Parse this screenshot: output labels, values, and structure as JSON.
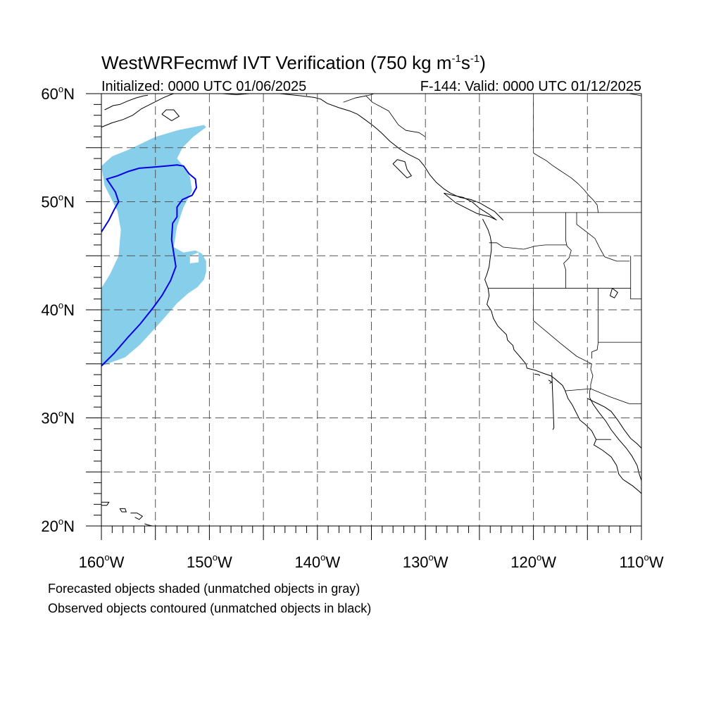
{
  "title": {
    "prefix": "WestWRFecmwf IVT Verification (750 kg m",
    "sup1": "-1",
    "mid": "s",
    "sup2": "-1",
    "suffix": ")"
  },
  "subtitle_left": "Initialized: 0000 UTC 01/06/2025",
  "subtitle_right": "F-144: Valid: 0000 UTC 01/12/2025",
  "map": {
    "lon_range": [
      -160,
      -110
    ],
    "lat_range": [
      20,
      60
    ],
    "grid_lon_step": 5,
    "grid_lat_step": 5,
    "minor_tick_step": 1,
    "lon_labels": [
      {
        "value": -160,
        "text": "160",
        "hemi": "W"
      },
      {
        "value": -150,
        "text": "150",
        "hemi": "W"
      },
      {
        "value": -140,
        "text": "140",
        "hemi": "W"
      },
      {
        "value": -130,
        "text": "130",
        "hemi": "W"
      },
      {
        "value": -120,
        "text": "120",
        "hemi": "W"
      },
      {
        "value": -110,
        "text": "110",
        "hemi": "W"
      }
    ],
    "lat_labels": [
      {
        "value": 60,
        "text": "60",
        "hemi": "N"
      },
      {
        "value": 50,
        "text": "50",
        "hemi": "N"
      },
      {
        "value": 40,
        "text": "40",
        "hemi": "N"
      },
      {
        "value": 30,
        "text": "30",
        "hemi": "N"
      },
      {
        "value": 20,
        "text": "20",
        "hemi": "N"
      }
    ],
    "colors": {
      "forecast_fill": "#87ceeb",
      "observed_contour": "#0000e6",
      "coastline": "#000000",
      "grid": "#555555"
    },
    "forecast_object": [
      [
        -157.5,
        54.8
      ],
      [
        -155,
        56
      ],
      [
        -153,
        56.6
      ],
      [
        -150.5,
        57.1
      ],
      [
        -150.3,
        56.9
      ],
      [
        -151.5,
        56
      ],
      [
        -152.5,
        55
      ],
      [
        -153,
        54
      ],
      [
        -152.5,
        53.4
      ],
      [
        -151.8,
        52.3
      ],
      [
        -151.6,
        51
      ],
      [
        -152.4,
        49.5
      ],
      [
        -153,
        47.7
      ],
      [
        -153.3,
        45.8
      ],
      [
        -152.4,
        45.3
      ],
      [
        -151.3,
        45.5
      ],
      [
        -150.7,
        45.2
      ],
      [
        -150.3,
        44.5
      ],
      [
        -150.3,
        43.5
      ],
      [
        -150.5,
        42.8
      ],
      [
        -151.1,
        42.1
      ],
      [
        -152,
        41.5
      ],
      [
        -153,
        40.6
      ],
      [
        -154.3,
        39.1
      ],
      [
        -155.3,
        38
      ],
      [
        -156.4,
        36.8
      ],
      [
        -157.8,
        35.6
      ],
      [
        -160,
        34.8
      ],
      [
        -160,
        42
      ],
      [
        -159.2,
        43.3
      ],
      [
        -158.4,
        45
      ],
      [
        -158.2,
        47.4
      ],
      [
        -158.5,
        49.1
      ],
      [
        -159.7,
        51.5
      ],
      [
        -160,
        53.3
      ],
      [
        -159,
        54.2
      ]
    ],
    "forecast_hole": [
      [
        -151.8,
        45
      ],
      [
        -151,
        45.3
      ],
      [
        -151,
        44.4
      ],
      [
        -151.8,
        44.3
      ]
    ],
    "observed_object": [
      [
        -160,
        47.2
      ],
      [
        -159.3,
        48.3
      ],
      [
        -158.8,
        49.3
      ],
      [
        -158.4,
        50
      ],
      [
        -158.7,
        50.9
      ],
      [
        -159.5,
        52.1
      ],
      [
        -158.5,
        52.4
      ],
      [
        -157.5,
        52.8
      ],
      [
        -156.5,
        53.1
      ],
      [
        -155.2,
        53.2
      ],
      [
        -154,
        53.3
      ],
      [
        -153,
        53.4
      ],
      [
        -152.4,
        53.3
      ],
      [
        -151.9,
        52.6
      ],
      [
        -151.3,
        52.1
      ],
      [
        -151.2,
        51.3
      ],
      [
        -151.6,
        50.6
      ],
      [
        -152.5,
        50.2
      ],
      [
        -153,
        49.5
      ],
      [
        -153,
        48.6
      ],
      [
        -153.4,
        48
      ],
      [
        -153.5,
        46.5
      ],
      [
        -153.3,
        45.2
      ],
      [
        -153.1,
        44
      ],
      [
        -153.6,
        42.7
      ],
      [
        -154.4,
        41.3
      ],
      [
        -155.2,
        40.2
      ],
      [
        -156.4,
        38.7
      ],
      [
        -157.5,
        37.5
      ],
      [
        -158.8,
        36
      ],
      [
        -160,
        34.8
      ]
    ],
    "coastlines": [
      [
        [
          -159.7,
          58.5
        ],
        [
          -158.9,
          58.9
        ],
        [
          -158.3,
          59.0
        ],
        [
          -157.6,
          59.3
        ],
        [
          -156.8,
          59.6
        ],
        [
          -156.1,
          59.8
        ],
        [
          -155.7,
          59.85
        ]
      ],
      [
        [
          -160,
          56.9
        ],
        [
          -159,
          57.3
        ],
        [
          -158.0,
          57.6
        ],
        [
          -157.1,
          58.0
        ],
        [
          -156.3,
          58.6
        ],
        [
          -155.3,
          59.1
        ],
        [
          -154.3,
          59.6
        ],
        [
          -153.6,
          59.9
        ],
        [
          -153.3,
          60
        ]
      ],
      [
        [
          -154.4,
          58.1
        ],
        [
          -154.0,
          58.5
        ],
        [
          -153.3,
          58.5
        ],
        [
          -152.8,
          57.9
        ],
        [
          -153.5,
          57.5
        ],
        [
          -154.4,
          58.1
        ]
      ],
      [
        [
          -148.8,
          60
        ],
        [
          -147.5,
          59.9
        ],
        [
          -146.3,
          60
        ],
        [
          -144.6,
          60
        ],
        [
          -143.5,
          60
        ],
        [
          -142.5,
          59.9
        ],
        [
          -141.5,
          59.8
        ],
        [
          -140.3,
          59.65
        ],
        [
          -139.7,
          59.5
        ],
        [
          -139.1,
          59.1
        ],
        [
          -138.0,
          58.7
        ],
        [
          -137.0,
          58.4
        ],
        [
          -136.3,
          58.1
        ],
        [
          -135.6,
          57.6
        ],
        [
          -134.8,
          57.0
        ],
        [
          -134.1,
          56.4
        ],
        [
          -133.3,
          55.6
        ],
        [
          -132.4,
          54.9
        ],
        [
          -131.6,
          54.4
        ],
        [
          -130.6,
          53.9
        ],
        [
          -130.1,
          53.3
        ],
        [
          -129.6,
          52.5
        ],
        [
          -129.0,
          51.8
        ],
        [
          -128.3,
          51.2
        ],
        [
          -127.7,
          50.8
        ],
        [
          -126.8,
          50.4
        ],
        [
          -125.8,
          50.2
        ],
        [
          -125.0,
          49.9
        ],
        [
          -124.3,
          49.5
        ],
        [
          -123.6,
          49.1
        ],
        [
          -123.2,
          48.7
        ],
        [
          -122.8,
          48.3
        ]
      ],
      [
        [
          -132.6,
          53.9
        ],
        [
          -131.9,
          53.7
        ],
        [
          -131.7,
          53.0
        ],
        [
          -131.3,
          52.4
        ],
        [
          -131.7,
          52.2
        ],
        [
          -132.4,
          52.9
        ],
        [
          -133.0,
          53.5
        ],
        [
          -132.6,
          53.9
        ]
      ],
      [
        [
          -128.3,
          50.8
        ],
        [
          -127.5,
          50.6
        ],
        [
          -126.5,
          50.4
        ],
        [
          -125.7,
          50.0
        ],
        [
          -125.0,
          49.4
        ],
        [
          -124.2,
          48.9
        ],
        [
          -123.4,
          48.3
        ],
        [
          -124.0,
          48.6
        ],
        [
          -125.2,
          48.9
        ],
        [
          -126.2,
          49.4
        ],
        [
          -127.2,
          49.9
        ],
        [
          -128.3,
          50.8
        ]
      ],
      [
        [
          -124.7,
          48.4
        ],
        [
          -124.5,
          48.0
        ],
        [
          -124.2,
          47.4
        ],
        [
          -124.0,
          46.8
        ],
        [
          -123.9,
          46.2
        ],
        [
          -123.9,
          45.5
        ],
        [
          -124.0,
          44.8
        ],
        [
          -124.1,
          44.0
        ],
        [
          -124.3,
          43.3
        ],
        [
          -124.5,
          42.8
        ],
        [
          -124.2,
          42.0
        ],
        [
          -124.1,
          41.3
        ],
        [
          -124.3,
          40.5
        ],
        [
          -123.9,
          39.9
        ],
        [
          -123.7,
          39.2
        ],
        [
          -123.3,
          38.5
        ],
        [
          -122.8,
          38.0
        ],
        [
          -122.5,
          37.7
        ],
        [
          -122.4,
          37.2
        ],
        [
          -121.9,
          36.7
        ],
        [
          -121.8,
          36.3
        ],
        [
          -121.2,
          35.6
        ],
        [
          -120.7,
          35.0
        ],
        [
          -120.6,
          34.6
        ],
        [
          -119.8,
          34.4
        ],
        [
          -119.0,
          34.1
        ],
        [
          -118.4,
          33.9
        ],
        [
          -118.0,
          33.6
        ],
        [
          -117.3,
          33.0
        ],
        [
          -117.1,
          32.6
        ],
        [
          -116.8,
          31.8
        ],
        [
          -116.4,
          31.2
        ],
        [
          -116.0,
          30.4
        ],
        [
          -115.7,
          29.8
        ],
        [
          -115.2,
          29.4
        ],
        [
          -114.6,
          28.8
        ],
        [
          -114.2,
          28.0
        ],
        [
          -114.4,
          27.5
        ],
        [
          -113.6,
          27.0
        ],
        [
          -112.8,
          26.4
        ],
        [
          -112.3,
          25.6
        ],
        [
          -112.1,
          24.8
        ],
        [
          -111.7,
          24.3
        ],
        [
          -110.8,
          23.7
        ],
        [
          -110.2,
          23.2
        ],
        [
          -109.9,
          22.9
        ]
      ],
      [
        [
          -114.8,
          31.9
        ],
        [
          -114.5,
          31.3
        ],
        [
          -114.0,
          30.6
        ],
        [
          -113.3,
          29.7
        ],
        [
          -112.8,
          28.9
        ],
        [
          -112.1,
          28.0
        ],
        [
          -111.4,
          27.2
        ],
        [
          -110.9,
          26.5
        ],
        [
          -110.4,
          25.6
        ],
        [
          -110.2,
          24.8
        ],
        [
          -110.0,
          24.2
        ]
      ],
      [
        [
          -115.0,
          31.8
        ],
        [
          -114.2,
          31.4
        ],
        [
          -113.4,
          31.0
        ],
        [
          -112.8,
          30.6
        ],
        [
          -112.2,
          29.8
        ],
        [
          -111.6,
          28.9
        ],
        [
          -111.0,
          28.1
        ],
        [
          -110.4,
          27.6
        ],
        [
          -110,
          27.2
        ]
      ],
      [
        [
          -160.3,
          22.2
        ],
        [
          -159.7,
          22.2
        ],
        [
          -159.3,
          22.2
        ],
        [
          -159.5,
          21.9
        ],
        [
          -160.0,
          21.9
        ]
      ],
      [
        [
          -158.3,
          21.6
        ],
        [
          -157.8,
          21.6
        ],
        [
          -157.7,
          21.3
        ],
        [
          -158.1,
          21.3
        ],
        [
          -158.3,
          21.6
        ]
      ],
      [
        [
          -157.3,
          21.2
        ],
        [
          -156.7,
          21.2
        ],
        [
          -156.2,
          20.9
        ],
        [
          -156.5,
          20.6
        ],
        [
          -156.9,
          20.8
        ]
      ],
      [
        [
          -156.0,
          20.2
        ],
        [
          -155.7,
          20.1
        ],
        [
          -155.3,
          20.0
        ],
        [
          -155.0,
          19.8
        ]
      ],
      [
        [
          -118.6,
          33.5
        ],
        [
          -118.3,
          33.3
        ],
        [
          -118.5,
          33.2
        ]
      ],
      [
        [
          -119.9,
          34.05
        ],
        [
          -119.5,
          34.0
        ],
        [
          -119.4,
          33.9
        ]
      ],
      [
        [
          -112.7,
          42.0
        ],
        [
          -112.2,
          41.6
        ],
        [
          -112.5,
          41.1
        ],
        [
          -112.9,
          41.3
        ],
        [
          -112.7,
          42.0
        ]
      ],
      [
        [
          -118.3,
          34.2
        ],
        [
          -118.1,
          29.1
        ],
        [
          -118.2,
          28.9
        ]
      ]
    ],
    "borders": [
      [
        [
          -123.2,
          49.0
        ],
        [
          -110,
          49.0
        ]
      ],
      [
        [
          -117.0,
          49.0
        ],
        [
          -117.0,
          46.4
        ],
        [
          -116.9,
          45.9
        ],
        [
          -116.5,
          45.5
        ],
        [
          -116.7,
          44.8
        ],
        [
          -117.2,
          44.3
        ],
        [
          -117.0,
          43.7
        ],
        [
          -117.0,
          42.0
        ]
      ],
      [
        [
          -124.1,
          46.2
        ],
        [
          -123.4,
          46.2
        ],
        [
          -122.8,
          45.8
        ],
        [
          -121.8,
          45.7
        ],
        [
          -120.9,
          45.6
        ],
        [
          -119.8,
          45.9
        ],
        [
          -118.9,
          46.0
        ],
        [
          -116.9,
          46.0
        ]
      ],
      [
        [
          -124.2,
          42.0
        ],
        [
          -111.0,
          42.0
        ]
      ],
      [
        [
          -120.0,
          42.0
        ],
        [
          -120.0,
          39.0
        ],
        [
          -117.5,
          36.9
        ],
        [
          -116.0,
          35.7
        ],
        [
          -114.6,
          35.0
        ],
        [
          -114.7,
          34.5
        ],
        [
          -114.5,
          33.9
        ],
        [
          -114.7,
          33.1
        ],
        [
          -114.7,
          32.7
        ]
      ],
      [
        [
          -116.0,
          49.0
        ],
        [
          -116.0,
          47.9
        ],
        [
          -115.2,
          47.3
        ],
        [
          -114.3,
          46.6
        ],
        [
          -113.8,
          45.6
        ],
        [
          -113.4,
          44.9
        ],
        [
          -112.3,
          44.5
        ],
        [
          -111.1,
          44.5
        ]
      ],
      [
        [
          -114.0,
          42.0
        ],
        [
          -114.0,
          37.0
        ],
        [
          -114.1,
          36.3
        ],
        [
          -114.6,
          36.1
        ],
        [
          -114.6,
          35.5
        ]
      ],
      [
        [
          -111.0,
          45.0
        ],
        [
          -111.0,
          41.0
        ],
        [
          -110,
          41.0
        ]
      ],
      [
        [
          -114.0,
          37.0
        ],
        [
          -110,
          37.0
        ]
      ],
      [
        [
          -117.1,
          32.5
        ],
        [
          -114.7,
          32.7
        ],
        [
          -112.9,
          31.95
        ],
        [
          -111.1,
          31.3
        ],
        [
          -110,
          31.3
        ]
      ],
      [
        [
          -114.7,
          32.7
        ],
        [
          -114.8,
          32.5
        ],
        [
          -114.8,
          31.9
        ]
      ],
      [
        [
          -114.2,
          28.0
        ],
        [
          -112.8,
          28.0
        ]
      ],
      [
        [
          -120.0,
          54.5
        ],
        [
          -120.0,
          60
        ]
      ],
      [
        [
          -141.0,
          60
        ],
        [
          -141.0,
          59.8
        ]
      ],
      [
        [
          -137.6,
          59.2
        ],
        [
          -136.5,
          59.6
        ],
        [
          -135.0,
          59.9
        ],
        [
          -134.8,
          60
        ]
      ],
      [
        [
          -130.0,
          56.0
        ],
        [
          -130.6,
          56.4
        ],
        [
          -131.8,
          56.6
        ],
        [
          -132.5,
          57.1
        ],
        [
          -133.4,
          58.4
        ],
        [
          -134.9,
          59.2
        ],
        [
          -135.5,
          59.8
        ],
        [
          -136.5,
          59.6
        ]
      ],
      [
        [
          -110,
          59.8
        ],
        [
          -110.5,
          59.9
        ],
        [
          -111.2,
          60
        ]
      ],
      [
        [
          -120.0,
          54.5
        ],
        [
          -119.5,
          54.2
        ],
        [
          -118.8,
          53.8
        ],
        [
          -118.3,
          53.4
        ],
        [
          -117.7,
          53.0
        ],
        [
          -117.1,
          52.6
        ],
        [
          -116.5,
          52.2
        ],
        [
          -115.9,
          51.7
        ],
        [
          -115.3,
          51.1
        ],
        [
          -114.9,
          50.6
        ],
        [
          -114.5,
          50.2
        ],
        [
          -114.1,
          49.7
        ],
        [
          -114.0,
          49.0
        ]
      ]
    ]
  },
  "footnote_1": "Forecasted objects shaded (unmatched objects in gray)",
  "footnote_2": "Observed objects contoured (unmatched objects in black)"
}
